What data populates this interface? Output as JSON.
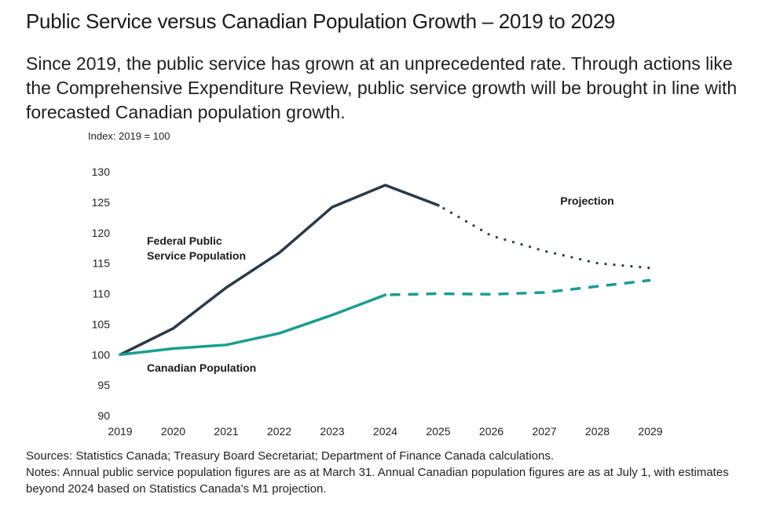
{
  "title": "Public Service versus Canadian Population Growth – 2019 to 2029",
  "subtitle": "Since 2019, the public service has grown at an unprecedented rate. Through actions like the Comprehensive Expenditure Review, public service growth will be brought in line with forecasted Canadian population growth.",
  "index_label": "Index: 2019 = 100",
  "sources": "Sources: Statistics Canada; Treasury Board Secretariat; Department of Finance Canada calculations.",
  "notes": "Notes: Annual public service population figures are as at March 31. Annual Canadian population figures are as at July 1, with estimates beyond 2024 based on Statistics Canada’s M1 projection.",
  "chart_data": {
    "type": "line",
    "title": "Public Service versus Canadian Population Growth – 2019 to 2029",
    "ylabel": "Index: 2019 = 100",
    "xlabel": "",
    "x": [
      2019,
      2020,
      2021,
      2022,
      2023,
      2024,
      2025,
      2026,
      2027,
      2028,
      2029
    ],
    "x_tick_labels": [
      "2019",
      "2020",
      "2021",
      "2022",
      "2023",
      "2024",
      "2025",
      "2026",
      "2027",
      "2028",
      "2029"
    ],
    "ylim": [
      90,
      130
    ],
    "y_ticks": [
      90,
      95,
      100,
      105,
      110,
      115,
      120,
      125,
      130
    ],
    "grid": false,
    "legend": "inline labels",
    "series": [
      {
        "name": "Federal Public Service Population",
        "label_lines": [
          "Federal Public",
          "Service Population"
        ],
        "color": "#2b3a48",
        "values": [
          100,
          104.3,
          111,
          116.7,
          124.2,
          127.8,
          124.5,
          119.5,
          117,
          115,
          114.2
        ],
        "actual_through": 2025,
        "projection_style": "dotted"
      },
      {
        "name": "Canadian Population",
        "label_lines": [
          "Canadian Population"
        ],
        "color": "#1a9e8f",
        "values": [
          100,
          101,
          101.6,
          103.5,
          106.5,
          109.8,
          110,
          109.9,
          110.2,
          111.2,
          112.2
        ],
        "actual_through": 2024,
        "projection_style": "dashed"
      }
    ],
    "annotations": [
      {
        "text": "Projection",
        "x": 2027.3,
        "y": 124.6
      }
    ]
  }
}
